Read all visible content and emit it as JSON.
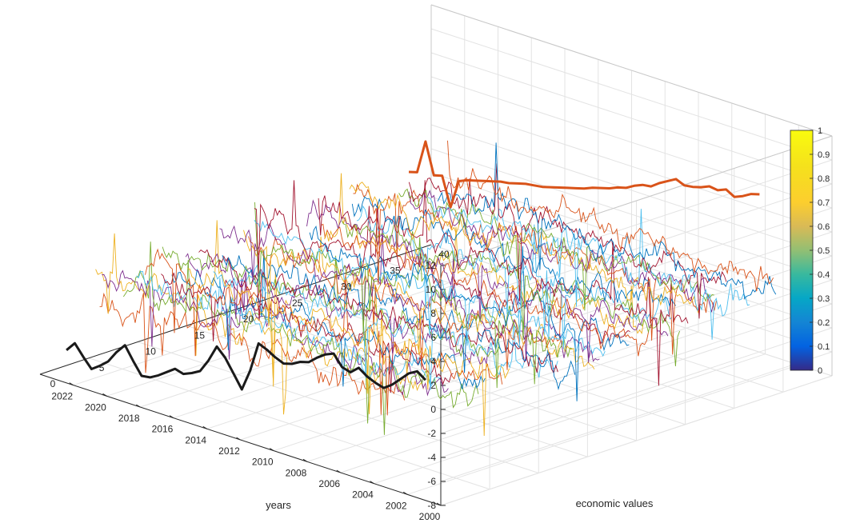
{
  "chart_data": {
    "type": "line",
    "projection": "3d",
    "xlabel": "years",
    "ylabel": "economic values",
    "zlabel": "",
    "xlim": [
      2000,
      2024
    ],
    "ylim": [
      0,
      40
    ],
    "zlim": [
      -8,
      12
    ],
    "x_ticks": [
      "2000",
      "2002",
      "2004",
      "2006",
      "2008",
      "2010",
      "2012",
      "2014",
      "2016",
      "2018",
      "2020",
      "2022"
    ],
    "y_ticks": [
      "0",
      "5",
      "10",
      "15",
      "20",
      "25",
      "30",
      "35",
      "40"
    ],
    "z_ticks": [
      "-8",
      "-6",
      "-4",
      "-2",
      "0",
      "2",
      "4",
      "6",
      "8",
      "10",
      "12"
    ],
    "grid": true,
    "series_count": 36,
    "highlighted_series": [
      {
        "color": "#1a1a1a",
        "series_index": 1,
        "x": [
          2001.5,
          2002,
          2002.5,
          2003,
          2003.5,
          2004,
          2004.5,
          2005,
          2005.5,
          2006,
          2006.5,
          2007,
          2007.5,
          2008,
          2008.5,
          2009,
          2009.5,
          2010,
          2010.5,
          2011,
          2011.5,
          2012,
          2012.5,
          2013,
          2013.5,
          2014,
          2014.5,
          2015,
          2015.5,
          2016,
          2016.5,
          2017,
          2017.5,
          2018,
          2018.5,
          2019,
          2019.5,
          2020,
          2020.5,
          2021,
          2021.5,
          2022,
          2022.5,
          2023
        ],
        "z": [
          1.5,
          2.0,
          1.6,
          0.9,
          0.2,
          -0.3,
          -0.1,
          0.2,
          0.7,
          0.1,
          0.3,
          1.2,
          0.9,
          0.4,
          -0.2,
          -0.4,
          -0.8,
          -1.0,
          -0.7,
          -0.3,
          0.0,
          -2.5,
          -4.3,
          -3.2,
          -2.1,
          -1.4,
          -2.8,
          -3.9,
          -4.3,
          -4.6,
          -4.4,
          -4.9,
          -5.4,
          -5.8,
          -5.9,
          -4.9,
          -3.8,
          -4.6,
          -5.6,
          -6.2,
          -6.7,
          -5.9,
          -5.0,
          -5.8
        ]
      },
      {
        "color": "#d95319",
        "series_index": 36,
        "x": [
          2002,
          2002.5,
          2003,
          2003.5,
          2004,
          2004.5,
          2005,
          2005.5,
          2006,
          2006.5,
          2007,
          2007.5,
          2008,
          2008.5,
          2009,
          2009.5,
          2010,
          2010.5,
          2011,
          2011.5,
          2012,
          2012.5,
          2013,
          2013.5,
          2014,
          2014.5,
          2015,
          2015.5,
          2016,
          2016.5,
          2017,
          2017.5,
          2018,
          2018.5,
          2019,
          2019.5,
          2020,
          2020.5,
          2021,
          2021.5,
          2022,
          2022.5,
          2023
        ],
        "z": [
          7.3,
          7.1,
          6.7,
          6.4,
          6.8,
          6.5,
          6.6,
          6.3,
          6.1,
          6.0,
          6.3,
          5.9,
          5.5,
          5.0,
          4.9,
          4.6,
          4.2,
          4.0,
          3.7,
          3.5,
          3.3,
          3.0,
          2.8,
          2.6,
          2.4,
          2.2,
          2.0,
          1.9,
          1.8,
          1.6,
          1.4,
          1.3,
          1.1,
          0.9,
          0.7,
          0.5,
          0.2,
          -2.2,
          0.2,
          0.0,
          2.6,
          -0.2,
          -0.4
        ]
      }
    ],
    "colorbar": {
      "min": 0,
      "max": 1,
      "ticks": [
        "0",
        "0.1",
        "0.2",
        "0.3",
        "0.4",
        "0.5",
        "0.6",
        "0.7",
        "0.8",
        "0.9",
        "1"
      ],
      "colormap": "parula"
    },
    "line_colors": [
      "#0072bd",
      "#d95319",
      "#edb120",
      "#7e2f8e",
      "#77ac30",
      "#4dbeee",
      "#a2142f"
    ]
  }
}
